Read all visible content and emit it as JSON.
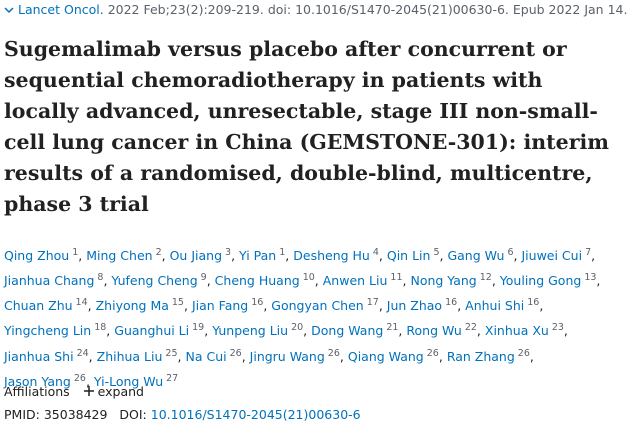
{
  "citation": {
    "journal": "Lancet Oncol.",
    "details": "2022 Feb;23(2):209-219. doi: 10.1016/S1470-2045(21)00630-6. Epub 2022 Jan 14."
  },
  "title": "Sugemalimab versus placebo after concurrent or sequential chemoradiotherapy in patients with locally advanced, unresectable, stage III non-small-cell lung cancer in China (GEMSTONE-301): interim results of a randomised, double-blind, multicentre, phase 3 trial",
  "author_separator": ",",
  "authors": [
    {
      "name": "Qing Zhou",
      "affil": "1"
    },
    {
      "name": "Ming Chen",
      "affil": "2"
    },
    {
      "name": "Ou Jiang",
      "affil": "3"
    },
    {
      "name": "Yi Pan",
      "affil": "1"
    },
    {
      "name": "Desheng Hu",
      "affil": "4"
    },
    {
      "name": "Qin Lin",
      "affil": "5"
    },
    {
      "name": "Gang Wu",
      "affil": "6"
    },
    {
      "name": "Jiuwei Cui",
      "affil": "7"
    },
    {
      "name": "Jianhua Chang",
      "affil": "8"
    },
    {
      "name": "Yufeng Cheng",
      "affil": "9"
    },
    {
      "name": "Cheng Huang",
      "affil": "10"
    },
    {
      "name": "Anwen Liu",
      "affil": "11"
    },
    {
      "name": "Nong Yang",
      "affil": "12"
    },
    {
      "name": "Youling Gong",
      "affil": "13"
    },
    {
      "name": "Chuan Zhu",
      "affil": "14"
    },
    {
      "name": "Zhiyong Ma",
      "affil": "15"
    },
    {
      "name": "Jian Fang",
      "affil": "16"
    },
    {
      "name": "Gongyan Chen",
      "affil": "17"
    },
    {
      "name": "Jun Zhao",
      "affil": "16"
    },
    {
      "name": "Anhui Shi",
      "affil": "16"
    },
    {
      "name": "Yingcheng Lin",
      "affil": "18"
    },
    {
      "name": "Guanghui Li",
      "affil": "19"
    },
    {
      "name": "Yunpeng Liu",
      "affil": "20"
    },
    {
      "name": "Dong Wang",
      "affil": "21"
    },
    {
      "name": "Rong Wu",
      "affil": "22"
    },
    {
      "name": "Xinhua Xu",
      "affil": "23"
    },
    {
      "name": "Jianhua Shi",
      "affil": "24"
    },
    {
      "name": "Zhihua Liu",
      "affil": "25"
    },
    {
      "name": "Na Cui",
      "affil": "26"
    },
    {
      "name": "Jingru Wang",
      "affil": "26"
    },
    {
      "name": "Qiang Wang",
      "affil": "26"
    },
    {
      "name": "Ran Zhang",
      "affil": "26"
    },
    {
      "name": "Jason Yang",
      "affil": "26"
    },
    {
      "name": "Yi-Long Wu",
      "affil": "27"
    }
  ],
  "affiliations": {
    "label": "Affiliations",
    "action": "expand"
  },
  "identifiers": {
    "pmid_label": "PMID:",
    "pmid": "35038429",
    "doi_label": "DOI:",
    "doi": "10.1016/S1470-2045(21)00630-6"
  }
}
